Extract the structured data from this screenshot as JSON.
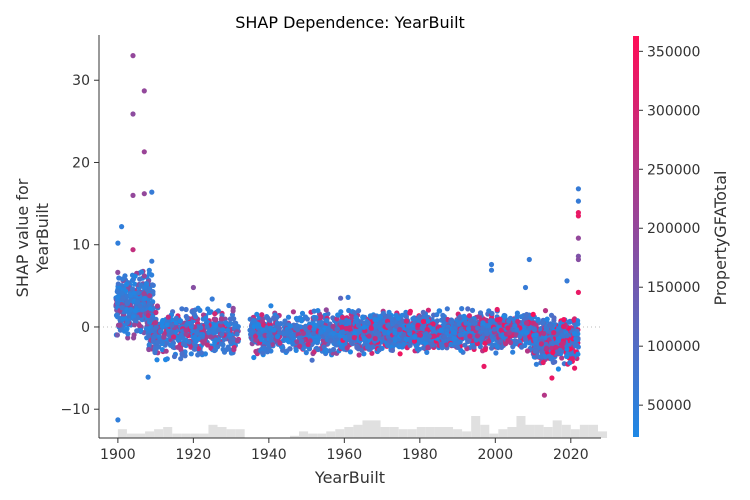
{
  "chart_data": {
    "type": "scatter",
    "title": "SHAP Dependence: YearBuilt",
    "xlabel": "YearBuilt",
    "ylabel_lines": [
      "SHAP value for",
      "YearBuilt"
    ],
    "colorbar_label": "PropertyGFATotal",
    "xlim": [
      1895,
      2028
    ],
    "ylim": [
      -13.5,
      35.5
    ],
    "x_ticks": [
      1900,
      1920,
      1940,
      1960,
      1980,
      2000,
      2020
    ],
    "x_tick_labels": [
      "1900",
      "1920",
      "1940",
      "1960",
      "1980",
      "2000",
      "2020"
    ],
    "y_ticks": [
      -10,
      0,
      10,
      20,
      30
    ],
    "y_tick_labels": [
      "−10",
      "0",
      "10",
      "20",
      "30"
    ],
    "colorbar": {
      "min": 23000,
      "max": 363000,
      "ticks": [
        50000,
        100000,
        150000,
        200000,
        250000,
        300000,
        350000
      ],
      "tick_labels": [
        "50000",
        "100000",
        "150000",
        "200000",
        "250000",
        "300000",
        "350000"
      ],
      "colors": [
        "#1e88e5",
        "#ff0d57"
      ]
    },
    "zero_line": true,
    "histogram_color": "#e0e0e0",
    "histogram": {
      "bin_start": 1900,
      "bin_width": 2.4,
      "counts": [
        4,
        2,
        2,
        3,
        4,
        5,
        2,
        2,
        2,
        2,
        6,
        5,
        4,
        4,
        0,
        0,
        0,
        0,
        0,
        1,
        3,
        2,
        2,
        3,
        4,
        5,
        6,
        8,
        8,
        5,
        5,
        4,
        4,
        5,
        5,
        5,
        5,
        4,
        3,
        10,
        6,
        2,
        4,
        5,
        10,
        6,
        6,
        5,
        8,
        6,
        4,
        6,
        6,
        3,
        0
      ]
    },
    "points": [
      {
        "x": 1904,
        "y": 33.0,
        "c": 200000
      },
      {
        "x": 1907,
        "y": 28.7,
        "c": 200000
      },
      {
        "x": 1904,
        "y": 25.9,
        "c": 190000
      },
      {
        "x": 1907,
        "y": 21.3,
        "c": 210000
      },
      {
        "x": 1904,
        "y": 16.0,
        "c": 200000
      },
      {
        "x": 1907,
        "y": 16.2,
        "c": 200000
      },
      {
        "x": 1909,
        "y": 16.4,
        "c": 60000
      },
      {
        "x": 1901,
        "y": 12.2,
        "c": 50000
      },
      {
        "x": 1900,
        "y": 10.2,
        "c": 50000
      },
      {
        "x": 1904,
        "y": 9.4,
        "c": 270000
      },
      {
        "x": 1909,
        "y": 8.0,
        "c": 60000
      },
      {
        "x": 1900,
        "y": -11.3,
        "c": 50000
      },
      {
        "x": 1908,
        "y": -6.1,
        "c": 50000
      },
      {
        "x": 1920,
        "y": 4.8,
        "c": 180000
      },
      {
        "x": 1925,
        "y": 3.4,
        "c": 60000
      },
      {
        "x": 1959,
        "y": 3.5,
        "c": 120000
      },
      {
        "x": 1961,
        "y": 3.6,
        "c": 60000
      },
      {
        "x": 1999,
        "y": 7.6,
        "c": 60000
      },
      {
        "x": 1999,
        "y": 6.9,
        "c": 60000
      },
      {
        "x": 2009,
        "y": 8.2,
        "c": 60000
      },
      {
        "x": 2008,
        "y": 4.8,
        "c": 60000
      },
      {
        "x": 2019,
        "y": 5.6,
        "c": 60000
      },
      {
        "x": 2022,
        "y": 16.8,
        "c": 60000
      },
      {
        "x": 2022,
        "y": 15.3,
        "c": 60000
      },
      {
        "x": 2022,
        "y": 13.5,
        "c": 330000
      },
      {
        "x": 2022,
        "y": 13.9,
        "c": 330000
      },
      {
        "x": 2022,
        "y": 10.8,
        "c": 200000
      },
      {
        "x": 2022,
        "y": 8.6,
        "c": 170000
      },
      {
        "x": 2022,
        "y": 8.2,
        "c": 180000
      },
      {
        "x": 2022,
        "y": 4.2,
        "c": 330000
      },
      {
        "x": 2013,
        "y": -8.3,
        "c": 250000
      },
      {
        "x": 2015,
        "y": -6.2,
        "c": 330000
      },
      {
        "x": 1997,
        "y": -4.8,
        "c": 330000
      },
      {
        "x": 2021,
        "y": -5.0,
        "c": 330000
      }
    ],
    "clusters": [
      {
        "x": [
          1899.5,
          1909.5
        ],
        "y": [
          -2.0,
          7.5
        ],
        "n": 420,
        "c_range": [
          23000,
          240000
        ]
      },
      {
        "x": [
          1908,
          1932
        ],
        "y": [
          -4.5,
          3.0
        ],
        "n": 520,
        "c_range": [
          23000,
          300000
        ]
      },
      {
        "x": [
          1935,
          1958
        ],
        "y": [
          -4.5,
          3.0
        ],
        "n": 520,
        "c_range": [
          23000,
          300000
        ]
      },
      {
        "x": [
          1958,
          1985
        ],
        "y": [
          -3.8,
          2.6
        ],
        "n": 900,
        "c_range": [
          23000,
          340000
        ]
      },
      {
        "x": [
          1985,
          2010
        ],
        "y": [
          -3.5,
          2.5
        ],
        "n": 850,
        "c_range": [
          23000,
          340000
        ]
      },
      {
        "x": [
          2010,
          2022
        ],
        "y": [
          -5.5,
          2.5
        ],
        "n": 480,
        "c_range": [
          23000,
          360000
        ]
      }
    ]
  }
}
